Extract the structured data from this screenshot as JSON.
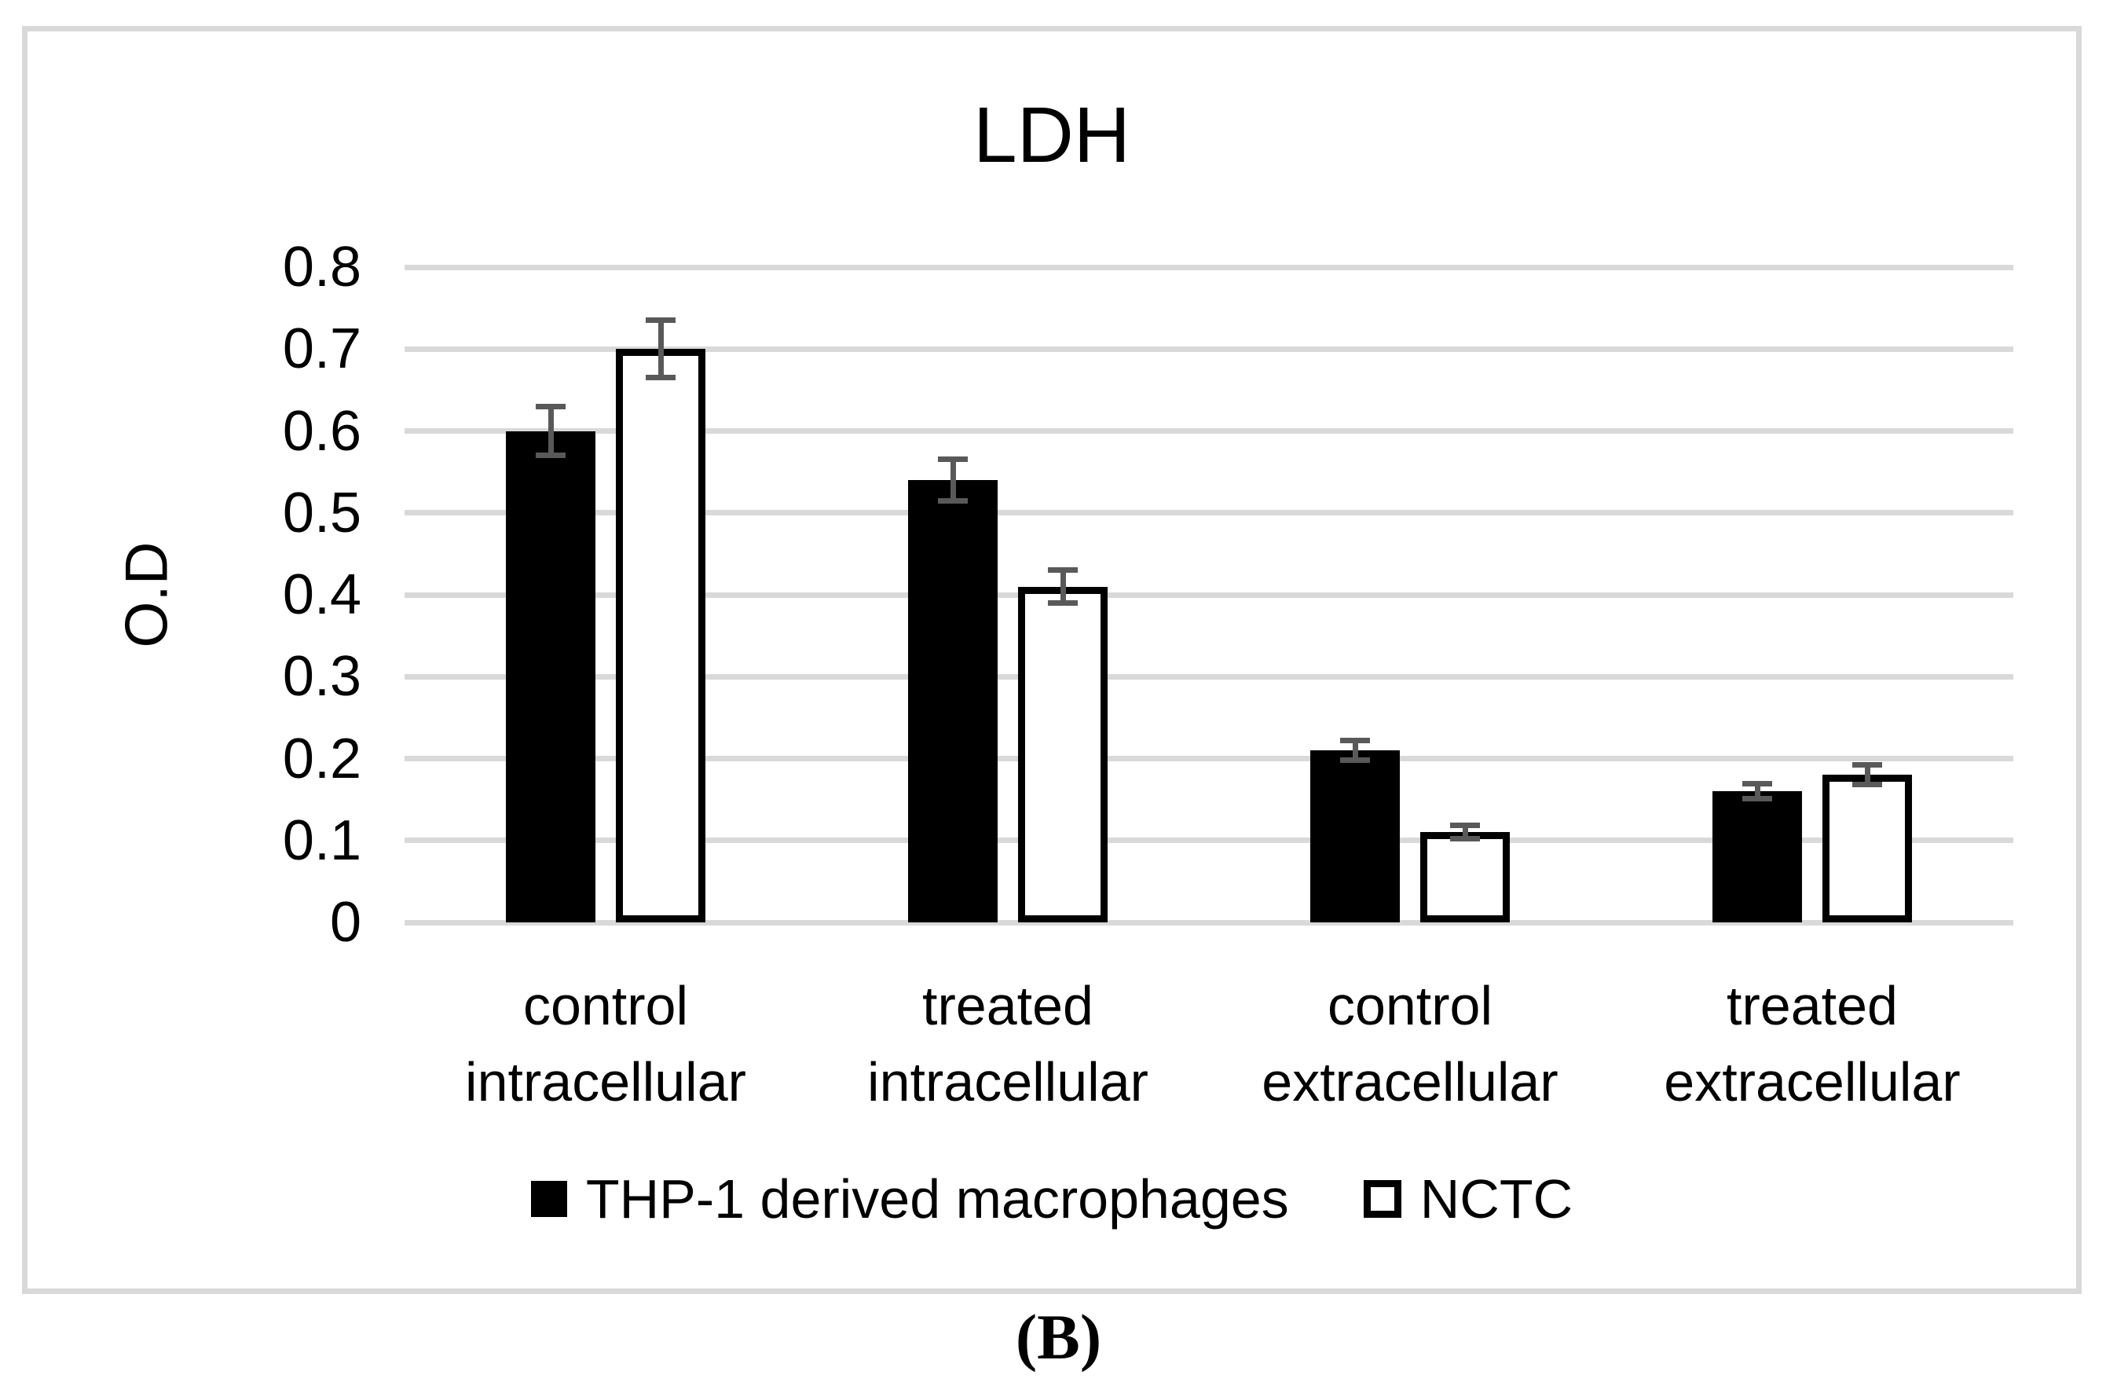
{
  "figure_label": "(B)",
  "chart_data": {
    "type": "bar",
    "title": "LDH",
    "ylabel": "O.D",
    "ylim": [
      0,
      0.8
    ],
    "ytick_step": 0.1,
    "yticks": [
      "0.8",
      "0.7",
      "0.6",
      "0.5",
      "0.4",
      "0.3",
      "0.2",
      "0.1",
      "0"
    ],
    "grid": true,
    "legend_position": "bottom",
    "categories": [
      "control intracellular",
      "treated intracellular",
      "control extracellular",
      "treated extracellular"
    ],
    "series": [
      {
        "name": "THP-1 derived macrophages",
        "fill": "#000000",
        "values": [
          0.6,
          0.54,
          0.21,
          0.16
        ],
        "errors": [
          0.03,
          0.025,
          0.012,
          0.009
        ]
      },
      {
        "name": "NCTC",
        "fill": "#ffffff",
        "values": [
          0.7,
          0.41,
          0.11,
          0.18
        ],
        "errors": [
          0.035,
          0.02,
          0.008,
          0.012
        ]
      }
    ],
    "colors": {
      "gridline": "#d9d9d9",
      "error_bar": "#595959",
      "bar_outline": "#000000",
      "box_border": "#d9d9d9",
      "text": "#000000"
    }
  }
}
